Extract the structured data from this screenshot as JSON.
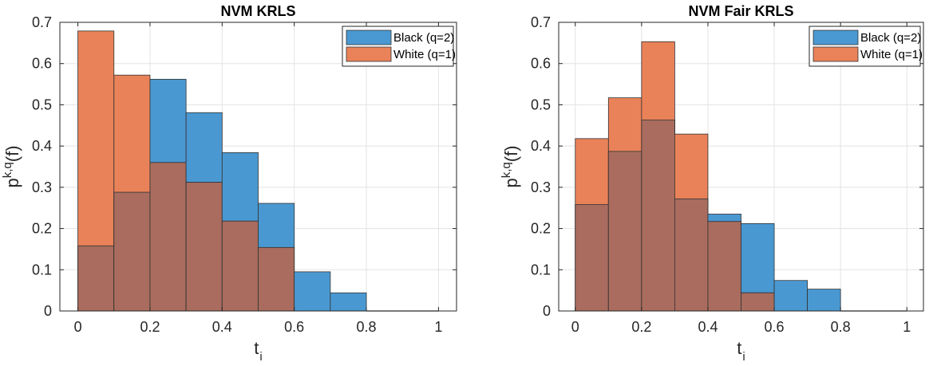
{
  "figure": {
    "colors": {
      "black": "#4a98d1",
      "white": "#e98259",
      "overlap": "#a96c5e",
      "edge": "#333333",
      "grid": "#e3e3e3",
      "axis": "#262626"
    }
  },
  "chart_data": [
    {
      "type": "bar",
      "title": "NVM KRLS",
      "xlabel": "t",
      "xlabel_sub": "i",
      "ylabel": "p",
      "ylabel_sup": "k,q",
      "ylabel_suffix": "(f)",
      "xlim": [
        -0.05,
        1.05
      ],
      "ylim": [
        0,
        0.7
      ],
      "x_ticks": [
        0,
        0.2,
        0.4,
        0.6,
        0.8,
        1
      ],
      "x_tick_labels": [
        "0",
        "0.2",
        "0.4",
        "0.6",
        "0.8",
        "1"
      ],
      "y_ticks": [
        0,
        0.1,
        0.2,
        0.3,
        0.4,
        0.5,
        0.6,
        0.7
      ],
      "y_tick_labels": [
        "0",
        "0.1",
        "0.2",
        "0.3",
        "0.4",
        "0.5",
        "0.6",
        "0.7"
      ],
      "grid": true,
      "legend_position": "top-right",
      "bin_edges": [
        0,
        0.1,
        0.2,
        0.3,
        0.4,
        0.5,
        0.6,
        0.7,
        0.8,
        0.9,
        1.0
      ],
      "series": [
        {
          "name": "Black (q=2)",
          "values": [
            0.158,
            0.288,
            0.562,
            0.481,
            0.384,
            0.261,
            0.095,
            0.044,
            0,
            0
          ]
        },
        {
          "name": "White (q=1)",
          "values": [
            0.679,
            0.572,
            0.36,
            0.312,
            0.218,
            0.154,
            0,
            0,
            0,
            0
          ]
        }
      ]
    },
    {
      "type": "bar",
      "title": "NVM Fair KRLS",
      "xlabel": "t",
      "xlabel_sub": "i",
      "ylabel": "p",
      "ylabel_sup": "k,q",
      "ylabel_suffix": "(f)",
      "xlim": [
        -0.05,
        1.05
      ],
      "ylim": [
        0,
        0.7
      ],
      "x_ticks": [
        0,
        0.2,
        0.4,
        0.6,
        0.8,
        1
      ],
      "x_tick_labels": [
        "0",
        "0.2",
        "0.4",
        "0.6",
        "0.8",
        "1"
      ],
      "y_ticks": [
        0,
        0.1,
        0.2,
        0.3,
        0.4,
        0.5,
        0.6,
        0.7
      ],
      "y_tick_labels": [
        "0",
        "0.1",
        "0.2",
        "0.3",
        "0.4",
        "0.5",
        "0.6",
        "0.7"
      ],
      "grid": true,
      "legend_position": "top-right",
      "bin_edges": [
        0,
        0.1,
        0.2,
        0.3,
        0.4,
        0.5,
        0.6,
        0.7,
        0.8,
        0.9,
        1.0
      ],
      "series": [
        {
          "name": "Black (q=2)",
          "values": [
            0.258,
            0.387,
            0.463,
            0.272,
            0.235,
            0.212,
            0.074,
            0.053,
            0,
            0
          ]
        },
        {
          "name": "White (q=1)",
          "values": [
            0.418,
            0.517,
            0.653,
            0.429,
            0.217,
            0.044,
            0,
            0,
            0,
            0
          ]
        }
      ]
    }
  ]
}
